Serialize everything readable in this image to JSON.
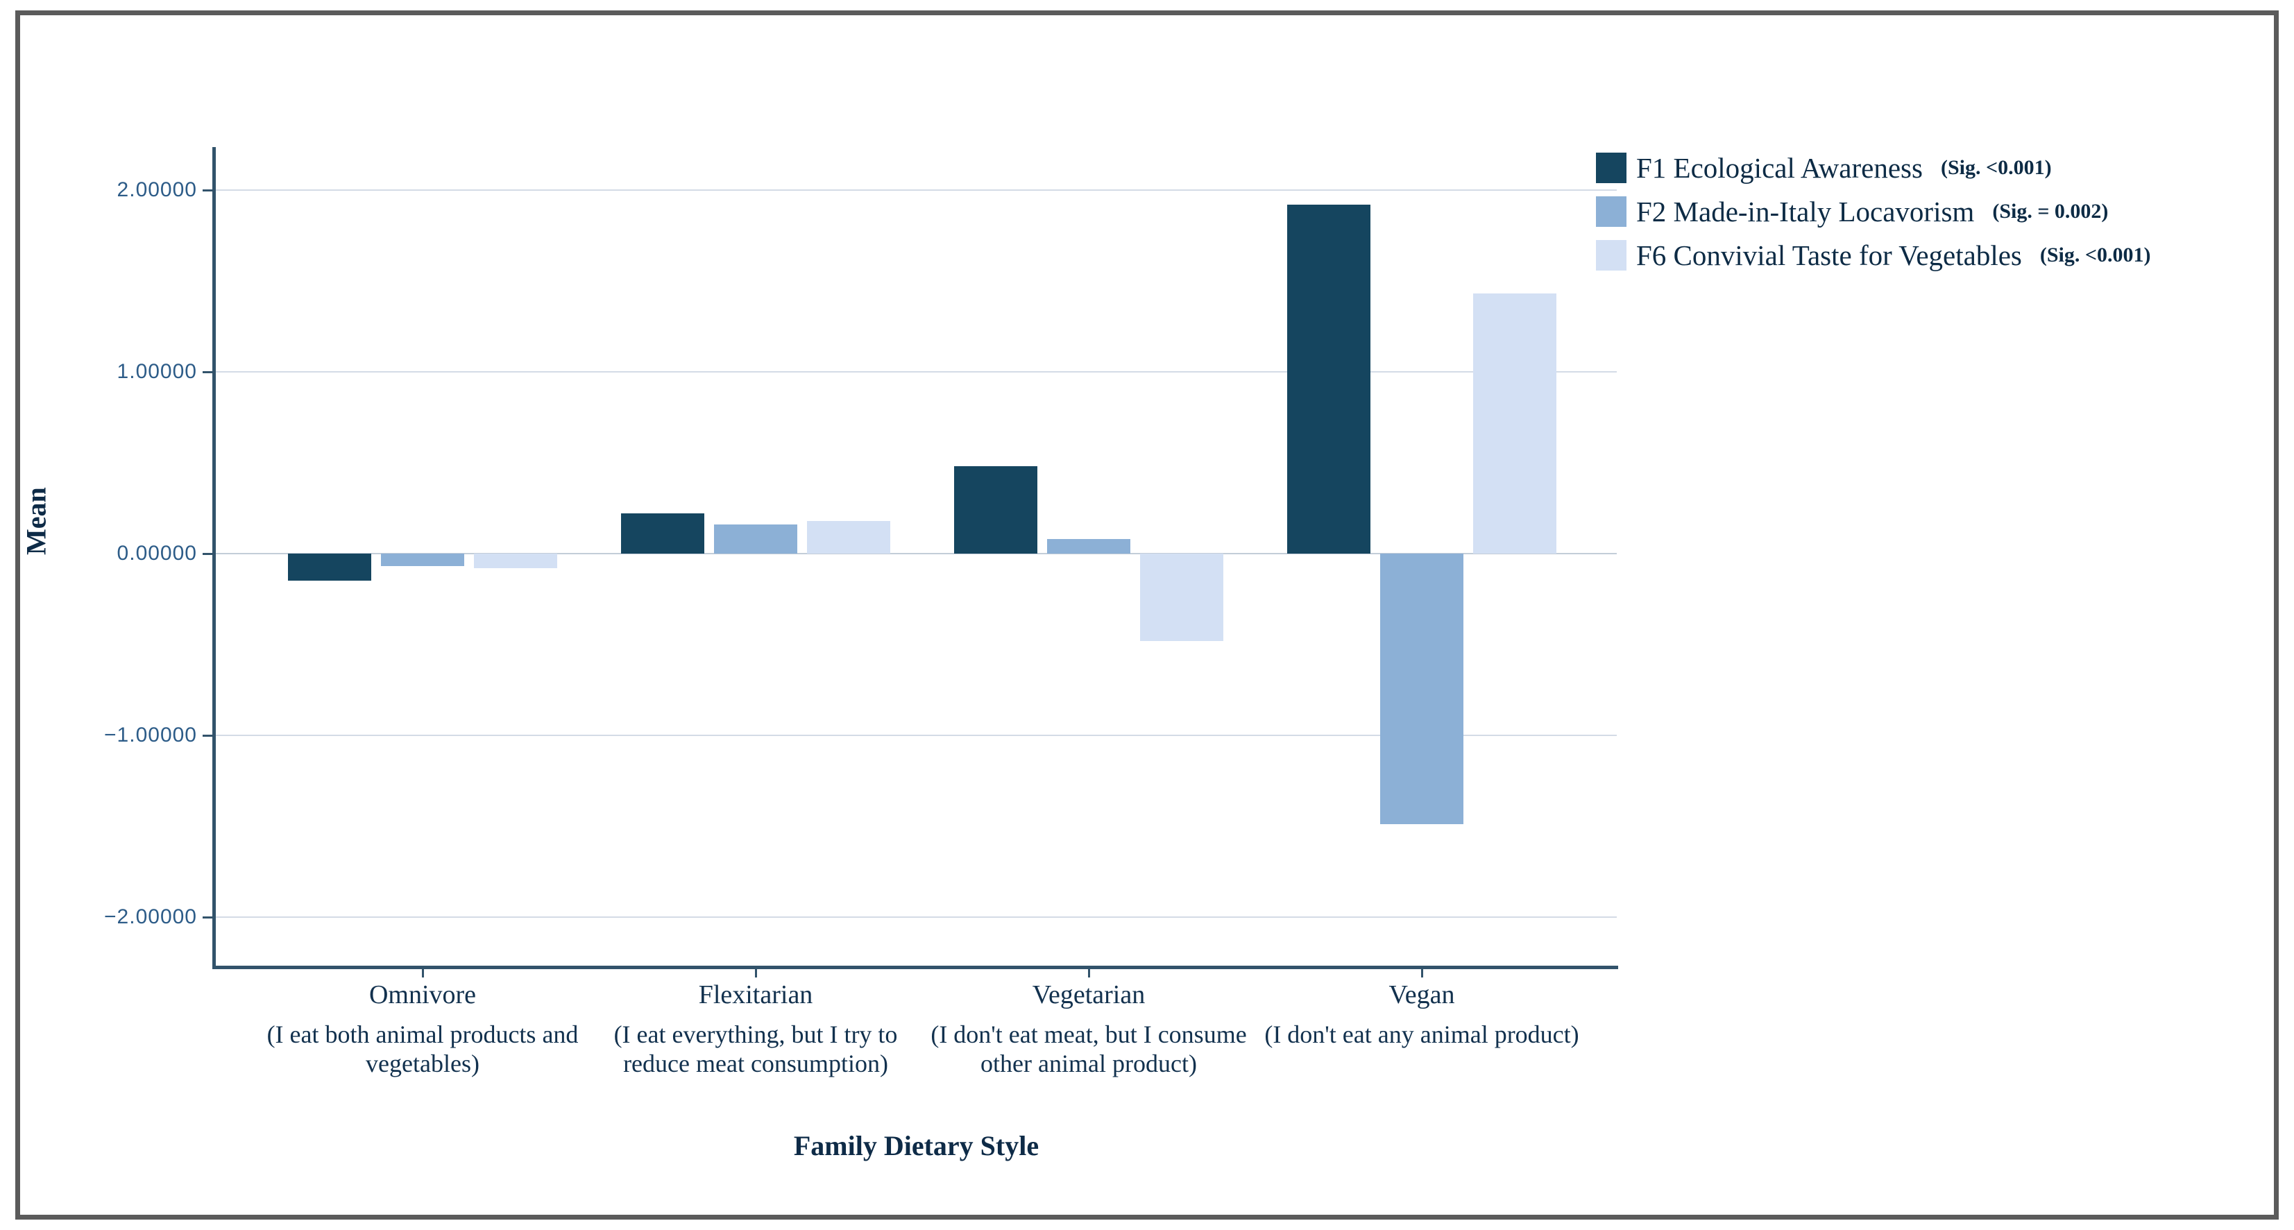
{
  "figure": {
    "background_color": "#ffffff",
    "frame_border_color": "#5b5b5b"
  },
  "axes": {
    "y_title": "Mean",
    "x_title": "Family Dietary Style",
    "axis_line_color": "#32536b",
    "gridline_color": "#d4dbe6",
    "tick_label_color": "#2d5c88"
  },
  "legend": {
    "position": "top-right",
    "items": [
      {
        "label": "F1 Ecological Awareness",
        "sig": "(Sig. <0.001)",
        "color": "#15455f"
      },
      {
        "label": "F2 Made-in-Italy Locavorism",
        "sig": "(Sig. = 0.002)",
        "color": "#8cb0d6"
      },
      {
        "label": "F6 Convivial Taste for Vegetables",
        "sig": "(Sig. <0.001)",
        "color": "#d3e0f4"
      }
    ]
  },
  "chart_data": {
    "type": "bar",
    "title": "",
    "xlabel": "Family Dietary Style",
    "ylabel": "Mean",
    "categories": [
      "Omnivore",
      "Flexitarian",
      "Vegetarian",
      "Vegan"
    ],
    "category_descriptions": [
      "(I eat both animal products and vegetables)",
      "(I eat everything, but I try to reduce meat consumption)",
      "(I don't eat meat, but I consume other animal product)",
      "(I don't eat any animal product)"
    ],
    "series": [
      {
        "name": "F1 Ecological Awareness",
        "sig": "(Sig. <0.001)",
        "color": "#15455f",
        "values": [
          -0.15,
          0.22,
          0.48,
          1.92
        ]
      },
      {
        "name": "F2 Made-in-Italy Locavorism",
        "sig": "(Sig. = 0.002)",
        "color": "#8cb0d6",
        "values": [
          -0.07,
          0.16,
          0.08,
          -1.49
        ]
      },
      {
        "name": "F6 Convivial Taste for Vegetables",
        "sig": "(Sig. <0.001)",
        "color": "#d3e0f4",
        "values": [
          -0.08,
          0.18,
          -0.48,
          1.43
        ]
      }
    ],
    "yticks": [
      {
        "label": "2.00000",
        "value": 2
      },
      {
        "label": "1.00000",
        "value": 1
      },
      {
        "label": "0.00000",
        "value": 0
      },
      {
        "label": "−1.00000",
        "value": -1
      },
      {
        "label": "−2.00000",
        "value": -2
      }
    ],
    "ylim": [
      -2.27,
      2.24
    ],
    "grid": true,
    "legend_position": "top-right"
  }
}
